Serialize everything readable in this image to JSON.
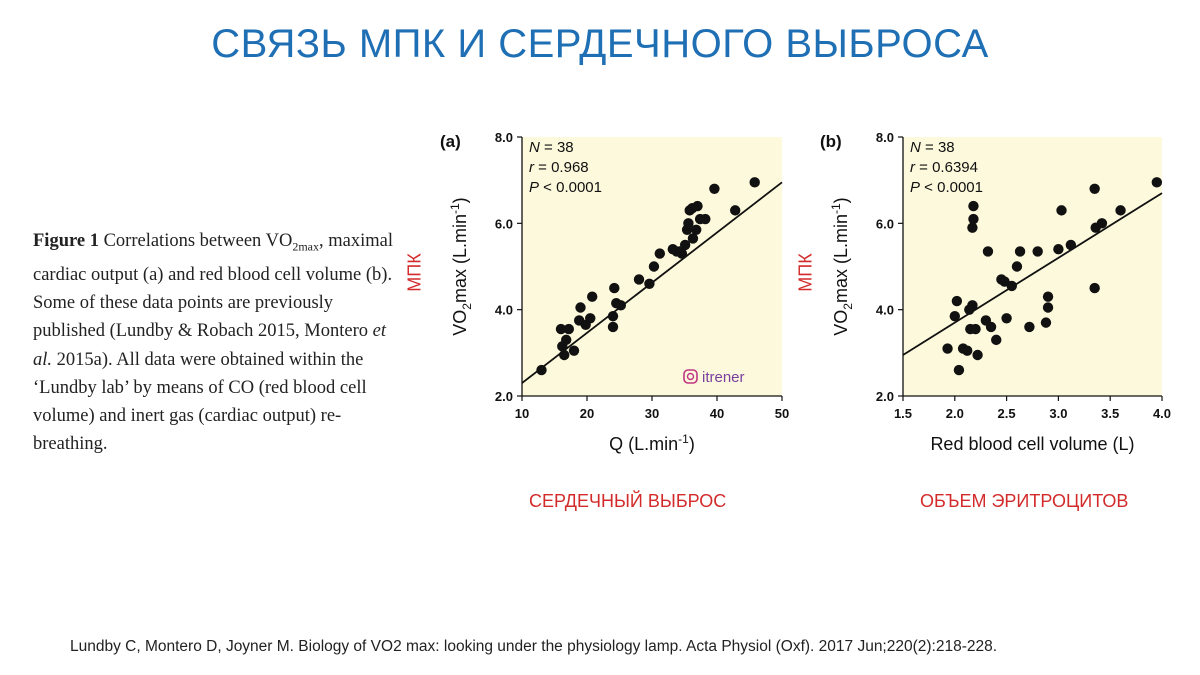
{
  "slide": {
    "title": "СВЯЗЬ МПК И СЕРДЕЧНОГО ВЫБРОСА",
    "reference": "Lundby C, Montero D, Joyner M. Biology of VO2 max: looking under the physiology lamp. Acta Physiol (Oxf). 2017 Jun;220(2):218-228."
  },
  "caption": {
    "figure_label": "Figure 1",
    "part1": "Correlations between VO",
    "subscript": "2max",
    "part2": ", maximal cardiac output (a) and red blood cell volume (b). Some of these data points are previously published (Lundby & Robach 2015, Montero ",
    "italic": "et al.",
    "part3": " 2015a). All data were obtained within the ‘Lundby lab’ by means of CO (red blood cell volume) and inert gas (cardiac output) re-breathing."
  },
  "annotations": {
    "mpk_left": "МПК",
    "mpk_right": "МПК",
    "label_a": "СЕРДЕЧНЫЙ ВЫБРОС",
    "label_b": "ОБЪЕМ ЭРИТРОЦИТОВ",
    "watermark": "itrener"
  },
  "colors": {
    "title": "#1f6fb5",
    "annotation": "#d32b2b",
    "plot_bg": "#fdf9dc",
    "marker": "#111111"
  },
  "chart_data": [
    {
      "type": "scatter",
      "panel": "(a)",
      "xlabel_main": "Q (L.min",
      "xlabel_sup": "-1",
      "xlabel_close": ")",
      "ylabel_main": "VO",
      "ylabel_sub": "2",
      "ylabel_mid": "max (L.min",
      "ylabel_sup": "-1",
      "ylabel_close": ")",
      "xlim": [
        10,
        50
      ],
      "ylim": [
        2.0,
        8.0
      ],
      "xticks": [
        "10",
        "20",
        "30",
        "40",
        "50"
      ],
      "yticks": [
        "2.0",
        "4.0",
        "6.0",
        "8.0"
      ],
      "stats": {
        "n_label": "N",
        "n_value": " = 38",
        "r_label": "r",
        "r_value": " = 0.968",
        "p_label": "P",
        "p_value": " < 0.0001"
      },
      "trendline": {
        "x": [
          10,
          50
        ],
        "y": [
          2.3,
          6.95
        ]
      },
      "points": [
        [
          13,
          2.6
        ],
        [
          16,
          3.55
        ],
        [
          16.2,
          3.15
        ],
        [
          16.5,
          2.95
        ],
        [
          16.8,
          3.3
        ],
        [
          17.2,
          3.55
        ],
        [
          18,
          3.05
        ],
        [
          18.8,
          3.75
        ],
        [
          19,
          4.05
        ],
        [
          19.8,
          3.65
        ],
        [
          20.5,
          3.8
        ],
        [
          20.8,
          4.3
        ],
        [
          24,
          3.6
        ],
        [
          24,
          3.85
        ],
        [
          24.2,
          4.5
        ],
        [
          24.5,
          4.15
        ],
        [
          25.2,
          4.1
        ],
        [
          28,
          4.7
        ],
        [
          29.6,
          4.6
        ],
        [
          30.3,
          5.0
        ],
        [
          31.2,
          5.3
        ],
        [
          33.2,
          5.4
        ],
        [
          34.2,
          5.35
        ],
        [
          34.6,
          5.3
        ],
        [
          35.1,
          5.5
        ],
        [
          35.4,
          5.85
        ],
        [
          35.6,
          6.0
        ],
        [
          35.8,
          6.3
        ],
        [
          36.3,
          5.65
        ],
        [
          36.8,
          5.85
        ],
        [
          36.2,
          6.35
        ],
        [
          37.0,
          6.4
        ],
        [
          38.2,
          6.1
        ],
        [
          37.4,
          6.1
        ],
        [
          39.6,
          6.8
        ],
        [
          42.8,
          6.3
        ],
        [
          45.8,
          6.95
        ],
        [
          33.8,
          5.35
        ]
      ]
    },
    {
      "type": "scatter",
      "panel": "(b)",
      "xlabel_main": "Red blood cell volume (L)",
      "ylabel_main": "VO",
      "ylabel_sub": "2",
      "ylabel_mid": "max (L.min",
      "ylabel_sup": "-1",
      "ylabel_close": ")",
      "xlim": [
        1.5,
        4.0
      ],
      "ylim": [
        2.0,
        8.0
      ],
      "xticks": [
        "1.5",
        "2.0",
        "2.5",
        "3.0",
        "3.5",
        "4.0"
      ],
      "yticks": [
        "2.0",
        "4.0",
        "6.0",
        "8.0"
      ],
      "stats": {
        "n_label": "N",
        "n_value": " = 38",
        "r_label": "r",
        "r_value": " = 0.6394",
        "p_label": "P",
        "p_value": " < 0.0001"
      },
      "trendline": {
        "x": [
          1.5,
          4.0
        ],
        "y": [
          2.95,
          6.7
        ]
      },
      "points": [
        [
          1.93,
          3.1
        ],
        [
          2.0,
          3.85
        ],
        [
          2.02,
          4.2
        ],
        [
          2.04,
          2.6
        ],
        [
          2.08,
          3.1
        ],
        [
          2.12,
          3.05
        ],
        [
          2.14,
          4.0
        ],
        [
          2.15,
          3.55
        ],
        [
          2.17,
          4.1
        ],
        [
          2.17,
          5.9
        ],
        [
          2.18,
          6.1
        ],
        [
          2.18,
          6.4
        ],
        [
          2.2,
          3.55
        ],
        [
          2.22,
          2.95
        ],
        [
          2.3,
          3.75
        ],
        [
          2.32,
          5.35
        ],
        [
          2.35,
          3.6
        ],
        [
          2.4,
          3.3
        ],
        [
          2.45,
          4.7
        ],
        [
          2.5,
          3.8
        ],
        [
          2.55,
          4.55
        ],
        [
          2.6,
          5.0
        ],
        [
          2.63,
          5.35
        ],
        [
          2.72,
          3.6
        ],
        [
          2.8,
          5.35
        ],
        [
          2.88,
          3.7
        ],
        [
          2.9,
          4.3
        ],
        [
          2.9,
          4.05
        ],
        [
          3.0,
          5.4
        ],
        [
          3.03,
          6.3
        ],
        [
          3.12,
          5.5
        ],
        [
          3.35,
          4.5
        ],
        [
          3.35,
          6.8
        ],
        [
          3.36,
          5.9
        ],
        [
          3.42,
          6.0
        ],
        [
          3.6,
          6.3
        ],
        [
          3.95,
          6.95
        ],
        [
          2.48,
          4.65
        ]
      ]
    }
  ]
}
